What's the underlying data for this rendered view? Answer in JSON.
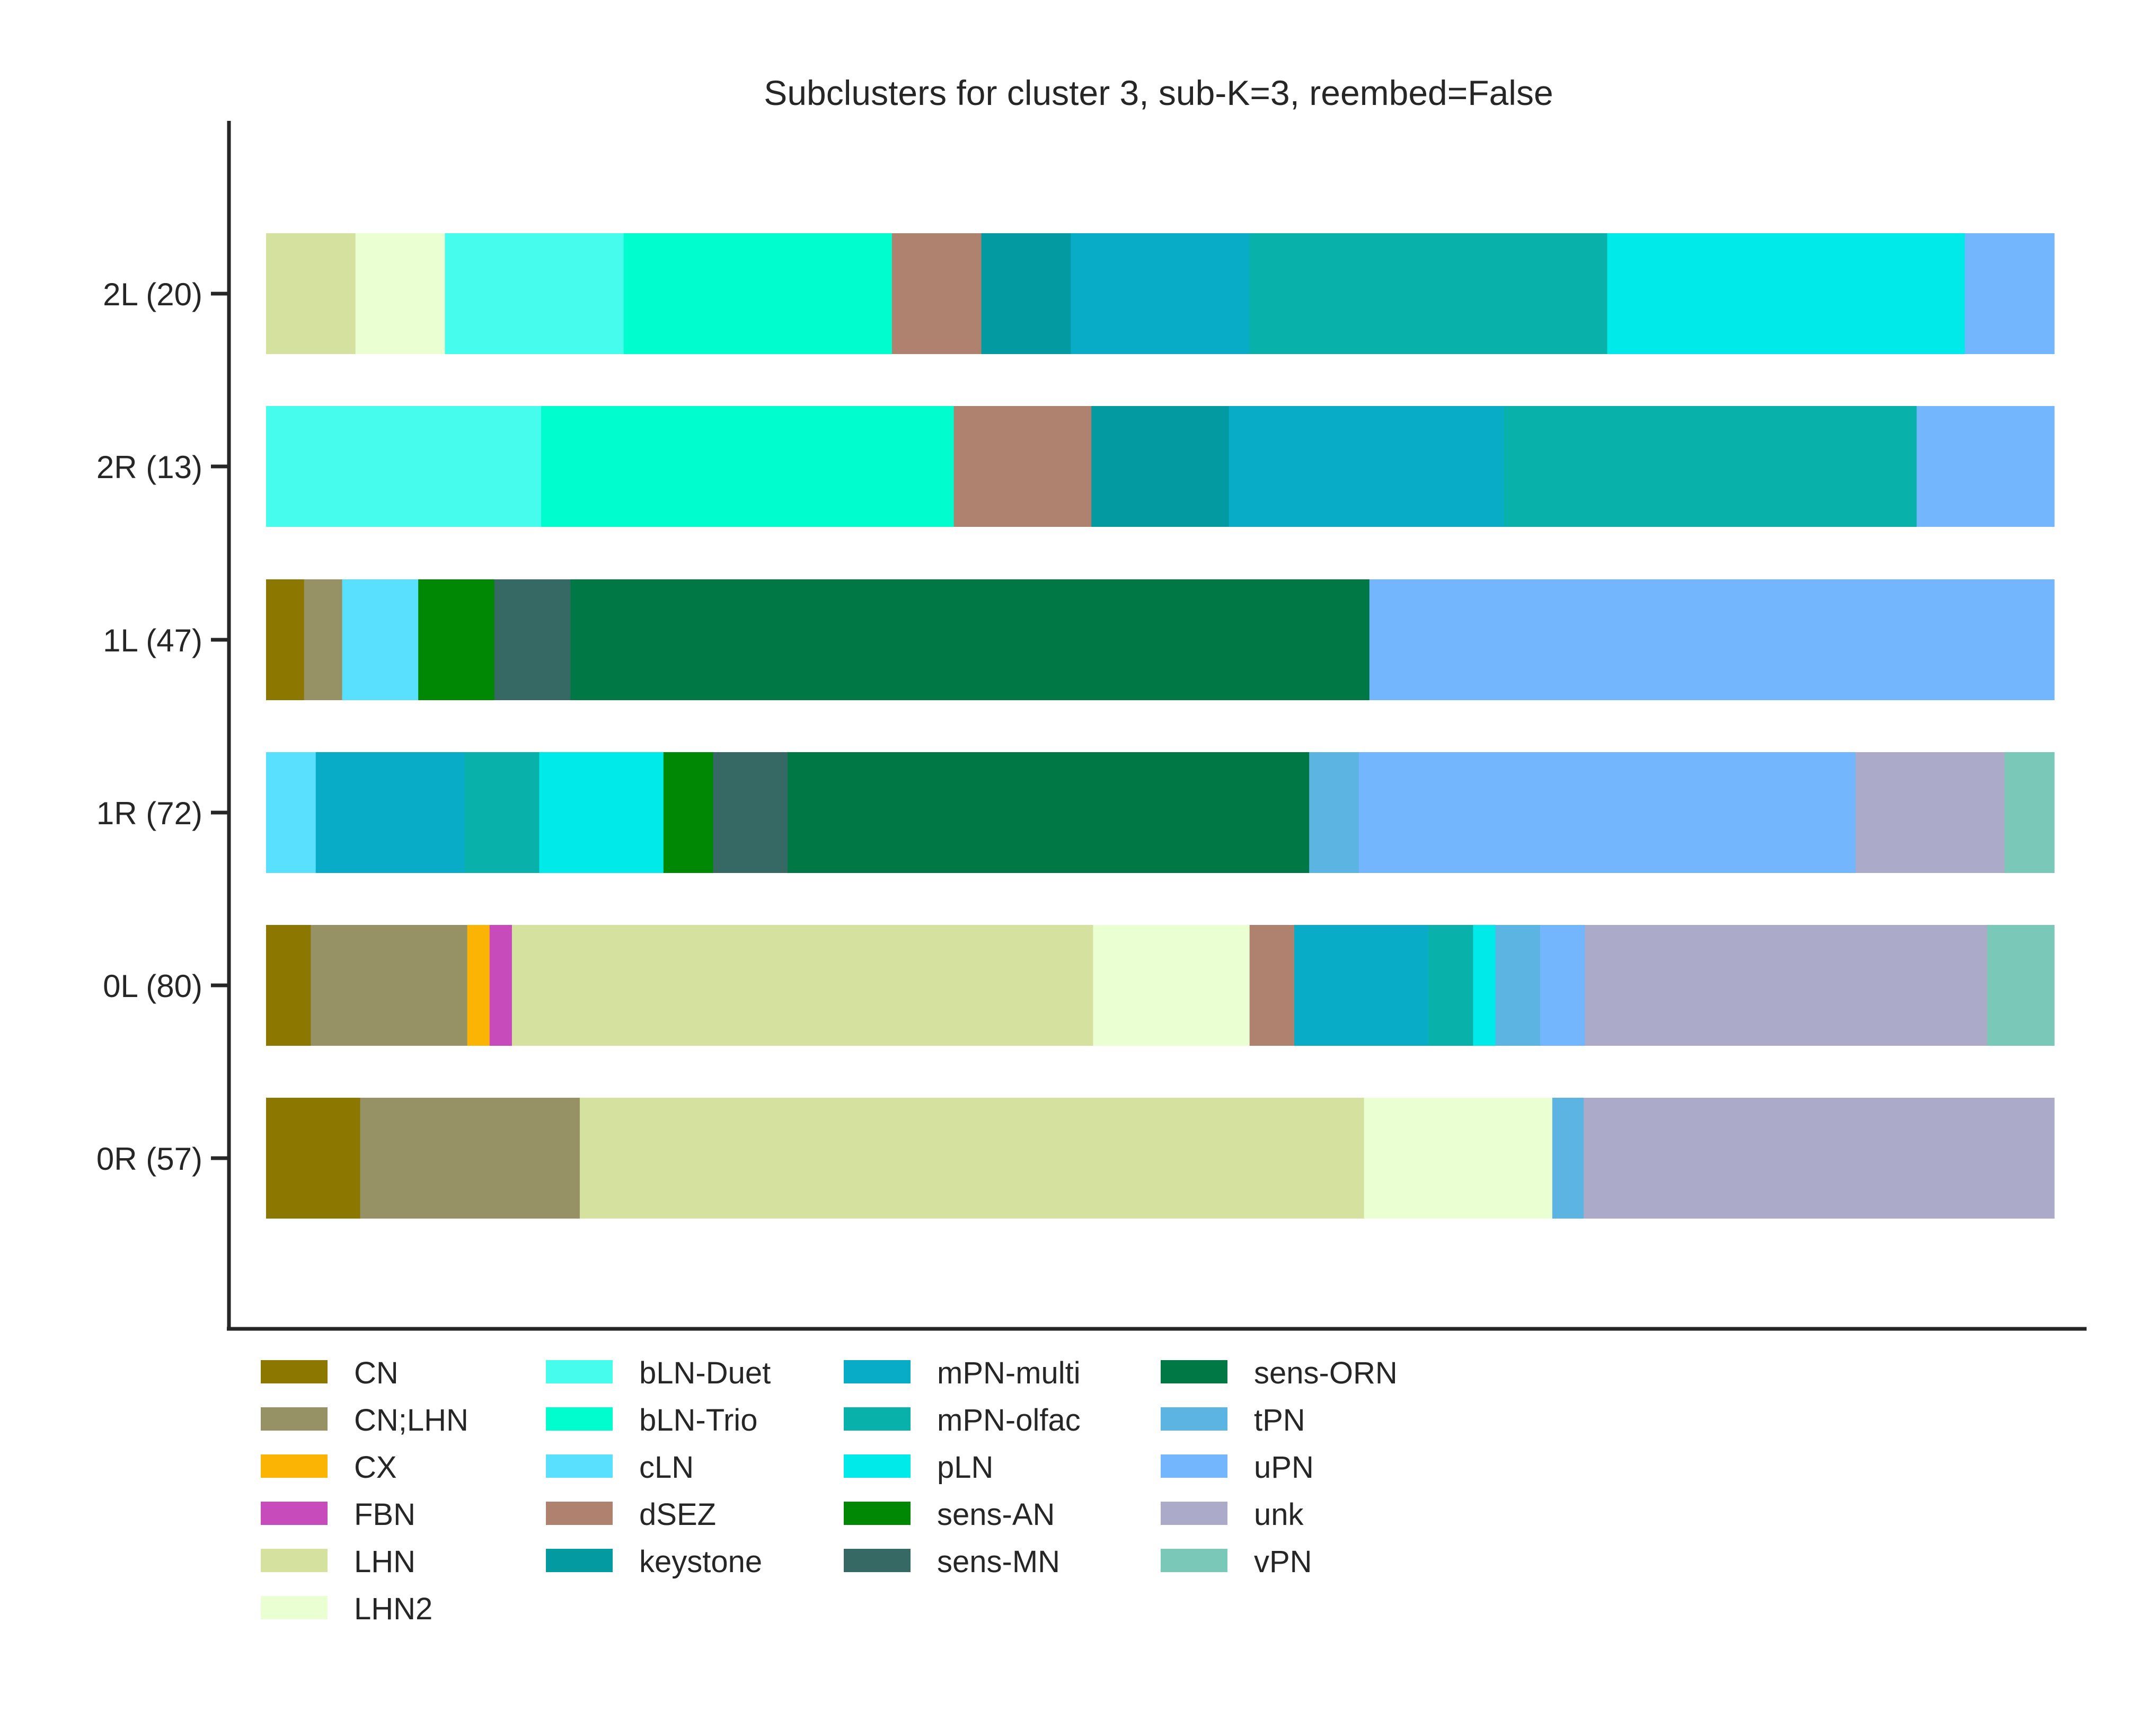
{
  "chart_data": {
    "type": "bar",
    "orientation": "horizontal",
    "stacked": true,
    "normalized": true,
    "title": "Subclusters for cluster 3, sub-K=3, reembed=False",
    "xlabel": "",
    "ylabel": "",
    "xlim": [
      0,
      1
    ],
    "grid": false,
    "legend_position": "bottom",
    "categories": [
      "2L (20)",
      "2R (13)",
      "1L (47)",
      "1R (72)",
      "0L (80)",
      "0R (57)"
    ],
    "counts": [
      20,
      13,
      47,
      72,
      80,
      57
    ],
    "series": [
      {
        "name": "CN",
        "color": "#8c7800",
        "values": [
          0,
          0,
          1,
          0,
          2,
          3
        ]
      },
      {
        "name": "CN;LHN",
        "color": "#969266",
        "values": [
          0,
          0,
          1,
          0,
          7,
          7
        ]
      },
      {
        "name": "CX",
        "color": "#fbb404",
        "values": [
          0,
          0,
          0,
          0,
          1,
          0
        ]
      },
      {
        "name": "FBN",
        "color": "#c84bbc",
        "values": [
          0,
          0,
          0,
          0,
          1,
          0
        ]
      },
      {
        "name": "LHN",
        "color": "#d4e19f",
        "values": [
          1,
          0,
          0,
          0,
          26,
          25
        ]
      },
      {
        "name": "LHN2",
        "color": "#eaffd2",
        "values": [
          1,
          0,
          0,
          0,
          7,
          6
        ]
      },
      {
        "name": "bLN-Duet",
        "color": "#46fded",
        "values": [
          2,
          2,
          0,
          0,
          0,
          0
        ]
      },
      {
        "name": "bLN-Trio",
        "color": "#00fdcd",
        "values": [
          3,
          3,
          0,
          0,
          0,
          0
        ]
      },
      {
        "name": "cLN",
        "color": "#5ae0ff",
        "values": [
          0,
          0,
          2,
          2,
          0,
          0
        ]
      },
      {
        "name": "dSEZ",
        "color": "#af826f",
        "values": [
          1,
          1,
          0,
          0,
          2,
          0
        ]
      },
      {
        "name": "keystone",
        "color": "#039aa1",
        "values": [
          1,
          1,
          0,
          0,
          0,
          0
        ]
      },
      {
        "name": "mPN-multi",
        "color": "#08acc7",
        "values": [
          2,
          2,
          0,
          6,
          6,
          0
        ]
      },
      {
        "name": "mPN-olfac",
        "color": "#08b2ab",
        "values": [
          4,
          3,
          0,
          3,
          2,
          0
        ]
      },
      {
        "name": "pLN",
        "color": "#00eaea",
        "values": [
          4,
          0,
          0,
          5,
          1,
          0
        ]
      },
      {
        "name": "sens-AN",
        "color": "#008804",
        "values": [
          0,
          0,
          2,
          2,
          0,
          0
        ]
      },
      {
        "name": "sens-MN",
        "color": "#376964",
        "values": [
          0,
          0,
          2,
          3,
          0,
          0
        ]
      },
      {
        "name": "sens-ORN",
        "color": "#007845",
        "values": [
          0,
          0,
          21,
          21,
          0,
          0
        ]
      },
      {
        "name": "tPN",
        "color": "#5bb4e1",
        "values": [
          0,
          0,
          0,
          2,
          2,
          1
        ]
      },
      {
        "name": "uPN",
        "color": "#74b6fd",
        "values": [
          1,
          1,
          18,
          20,
          2,
          0
        ]
      },
      {
        "name": "unk",
        "color": "#abaac9",
        "values": [
          0,
          0,
          0,
          6,
          18,
          15
        ]
      },
      {
        "name": "vPN",
        "color": "#79c8b8",
        "values": [
          0,
          0,
          0,
          2,
          3,
          0
        ]
      }
    ]
  }
}
